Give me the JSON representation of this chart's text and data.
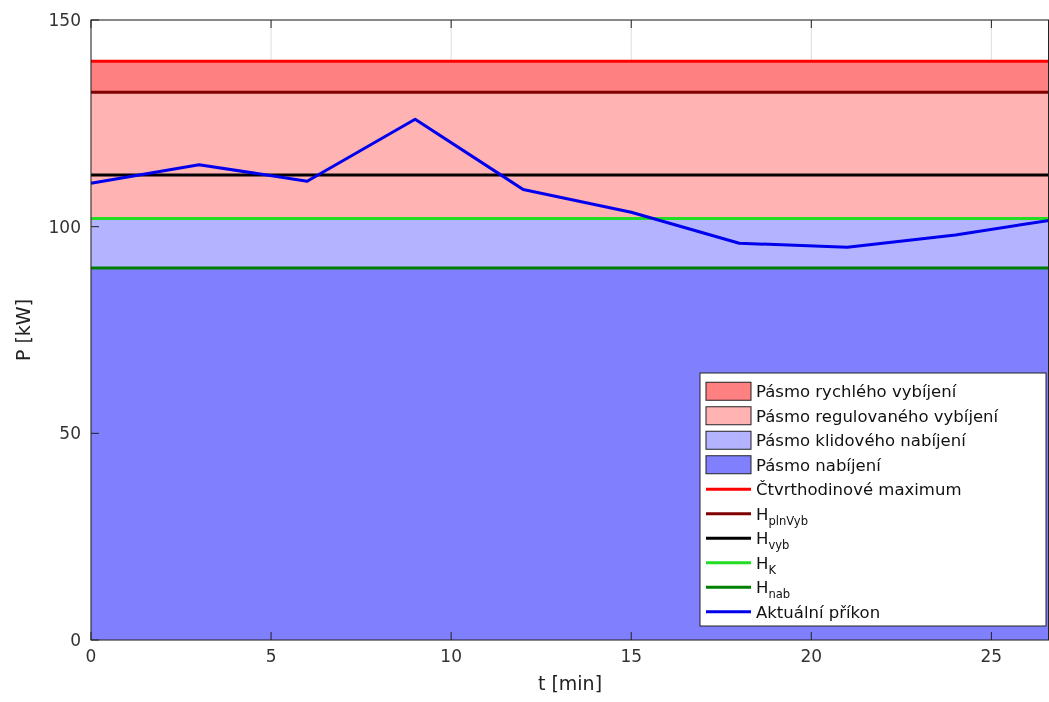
{
  "chart_data": {
    "type": "line",
    "xlabel": "t [min]",
    "ylabel": "P [kW]",
    "xlim": [
      0,
      26.6
    ],
    "ylim": [
      0,
      150
    ],
    "xticks": [
      0,
      5,
      10,
      15,
      20,
      25
    ],
    "yticks": [
      0,
      50,
      100,
      150
    ],
    "grid": true,
    "legend": "bottom right",
    "line_style": "solid",
    "marker": "none",
    "bands": [
      {
        "axis": "y",
        "from": 132.5,
        "to": 140,
        "label": "Pásmo rychlého vybíjení",
        "color": "#ff8080"
      },
      {
        "axis": "y",
        "from": 102,
        "to": 132.5,
        "label": "Pásmo regulovaného vybíjení",
        "color": "#ffb3b3"
      },
      {
        "axis": "y",
        "from": 90,
        "to": 102,
        "label": "Pásmo klidového nabíjení",
        "color": "#b3b3ff"
      },
      {
        "axis": "y",
        "from": 0,
        "to": 90,
        "label": "Pásmo nabíjení",
        "color": "#8080ff"
      }
    ],
    "ref_lines": [
      {
        "axis": "y",
        "value": 140,
        "label": "Čtvrthodinové maximum",
        "color": "#ff0000"
      },
      {
        "axis": "y",
        "value": 132.5,
        "label": "H$_{plnVyb}$",
        "color": "#800000"
      },
      {
        "axis": "y",
        "value": 112.5,
        "label": "H$_{vyb}$",
        "color": "#000000"
      },
      {
        "axis": "y",
        "value": 102,
        "label": "H$_{K}$",
        "color": "#22dd22"
      },
      {
        "axis": "y",
        "value": 90,
        "label": "H$_{nab}$",
        "color": "#008000"
      }
    ],
    "x": [
      0,
      3,
      6,
      9,
      12,
      15,
      18,
      21,
      24,
      26.6
    ],
    "series": [
      {
        "name": "Aktuální příkon",
        "color": "#0000ee",
        "values": [
          110.5,
          115,
          111,
          126,
          109,
          103.5,
          96,
          95,
          98,
          101.5
        ]
      }
    ]
  }
}
